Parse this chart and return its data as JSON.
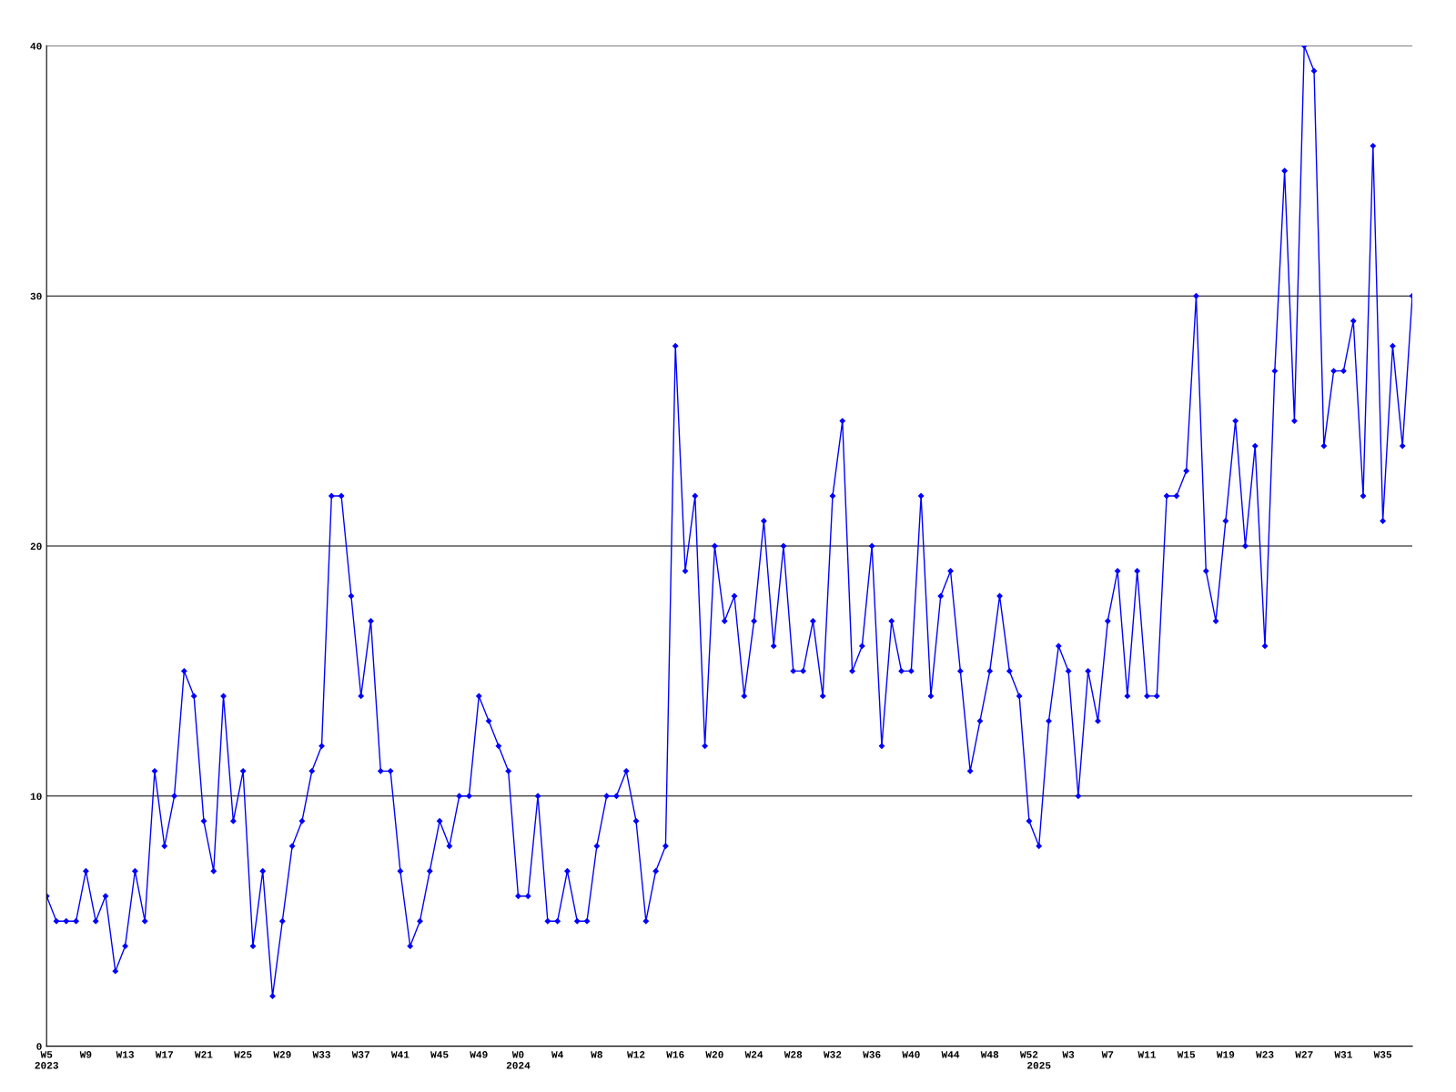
{
  "chart_data": {
    "type": "line",
    "categories": [
      "W5\n2023",
      null,
      null,
      null,
      "W9",
      null,
      null,
      null,
      "W13",
      null,
      null,
      null,
      "W17",
      null,
      null,
      null,
      "W21",
      null,
      null,
      null,
      "W25",
      null,
      null,
      null,
      "W29",
      null,
      null,
      null,
      "W33",
      null,
      null,
      null,
      "W37",
      null,
      null,
      null,
      "W41",
      null,
      null,
      null,
      "W45",
      null,
      null,
      null,
      "W49",
      null,
      null,
      null,
      "W0\n2024",
      null,
      null,
      null,
      "W4",
      null,
      null,
      null,
      "W8",
      null,
      null,
      null,
      "W12",
      null,
      null,
      null,
      "W16",
      null,
      null,
      null,
      "W20",
      null,
      null,
      null,
      "W24",
      null,
      null,
      null,
      "W28",
      null,
      null,
      null,
      "W32",
      null,
      null,
      null,
      "W36",
      null,
      null,
      null,
      "W40",
      null,
      null,
      null,
      "W44",
      null,
      null,
      null,
      "W48",
      null,
      null,
      null,
      "W52",
      "\n2025",
      null,
      null,
      "W3",
      null,
      null,
      null,
      "W7",
      null,
      null,
      null,
      "W11",
      null,
      null,
      null,
      "W15",
      null,
      null,
      null,
      "W19",
      null,
      null,
      null,
      "W23",
      null,
      null,
      null,
      "W27",
      null,
      null,
      null,
      "W31",
      null,
      null,
      null,
      "W35",
      null,
      null,
      null
    ],
    "series": [
      {
        "color": "#0000ff",
        "values": [
          6,
          5,
          5,
          5,
          7,
          5,
          6,
          3,
          4,
          7,
          5,
          11,
          8,
          10,
          15,
          14,
          9,
          7,
          14,
          9,
          11,
          4,
          7,
          2,
          5,
          8,
          9,
          11,
          12,
          22,
          22,
          18,
          14,
          17,
          11,
          11,
          7,
          4,
          5,
          7,
          9,
          8,
          10,
          10,
          14,
          13,
          12,
          11,
          6,
          6,
          10,
          5,
          5,
          7,
          5,
          5,
          8,
          10,
          10,
          11,
          9,
          5,
          7,
          8,
          28,
          19,
          22,
          12,
          20,
          17,
          18,
          14,
          17,
          21,
          16,
          20,
          15,
          15,
          17,
          14,
          22,
          25,
          15,
          16,
          20,
          12,
          17,
          15,
          15,
          22,
          14,
          18,
          19,
          15,
          11,
          13,
          15,
          18,
          15,
          14,
          9,
          8,
          13,
          16,
          15,
          10,
          15,
          13,
          17,
          19,
          14,
          19,
          14,
          14,
          22,
          22,
          23,
          30,
          19,
          17,
          21,
          25,
          20,
          24,
          16,
          27,
          35,
          25,
          40,
          39,
          24,
          27,
          27,
          29,
          22,
          36,
          21,
          28,
          24,
          30
        ]
      }
    ],
    "ylim": [
      0,
      40
    ],
    "yticks": [
      0,
      10,
      20,
      30,
      40
    ],
    "grid": "y",
    "marker": "diamond",
    "line_style": "solid"
  }
}
